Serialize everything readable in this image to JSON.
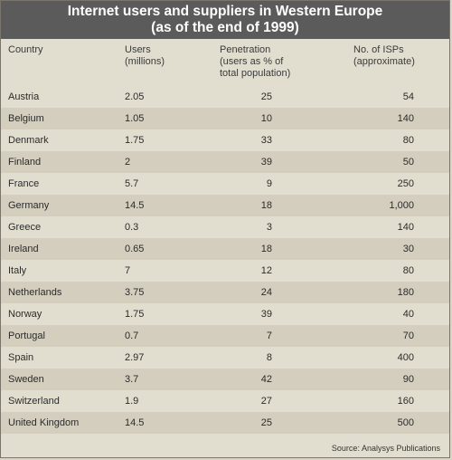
{
  "title": {
    "line1": "Internet users and suppliers in Western Europe",
    "line2": "(as of the end of 1999)"
  },
  "columns": {
    "country": [
      "Country"
    ],
    "users": [
      "Users",
      "(millions)"
    ],
    "penetration": [
      "Penetration",
      "(users as % of",
      "total population)"
    ],
    "isps": [
      "No. of ISPs",
      "(approximate)"
    ]
  },
  "rows": [
    {
      "country": "Austria",
      "users": "2.05",
      "penetration": "25",
      "isps": "54"
    },
    {
      "country": "Belgium",
      "users": "1.05",
      "penetration": "10",
      "isps": "140"
    },
    {
      "country": "Denmark",
      "users": "1.75",
      "penetration": "33",
      "isps": "80"
    },
    {
      "country": "Finland",
      "users": "2",
      "penetration": "39",
      "isps": "50"
    },
    {
      "country": "France",
      "users": "5.7",
      "penetration": "9",
      "isps": "250"
    },
    {
      "country": "Germany",
      "users": "14.5",
      "penetration": "18",
      "isps": "1,000"
    },
    {
      "country": "Greece",
      "users": "0.3",
      "penetration": "3",
      "isps": "140"
    },
    {
      "country": "Ireland",
      "users": "0.65",
      "penetration": "18",
      "isps": "30"
    },
    {
      "country": "Italy",
      "users": "7",
      "penetration": "12",
      "isps": "80"
    },
    {
      "country": "Netherlands",
      "users": "3.75",
      "penetration": "24",
      "isps": "180"
    },
    {
      "country": "Norway",
      "users": "1.75",
      "penetration": "39",
      "isps": "40"
    },
    {
      "country": "Portugal",
      "users": "0.7",
      "penetration": "7",
      "isps": "70"
    },
    {
      "country": "Spain",
      "users": "2.97",
      "penetration": "8",
      "isps": "400"
    },
    {
      "country": "Sweden",
      "users": "3.7",
      "penetration": "42",
      "isps": "90"
    },
    {
      "country": "Switzerland",
      "users": "1.9",
      "penetration": "27",
      "isps": "160"
    },
    {
      "country": "United Kingdom",
      "users": "14.5",
      "penetration": "25",
      "isps": "500"
    }
  ],
  "source": "Source: Analysys Publications",
  "colors": {
    "background": "#e2decf",
    "title_bar": "#5b5b5b",
    "title_text": "#ffffff",
    "row_shade": "#d3cebd"
  }
}
